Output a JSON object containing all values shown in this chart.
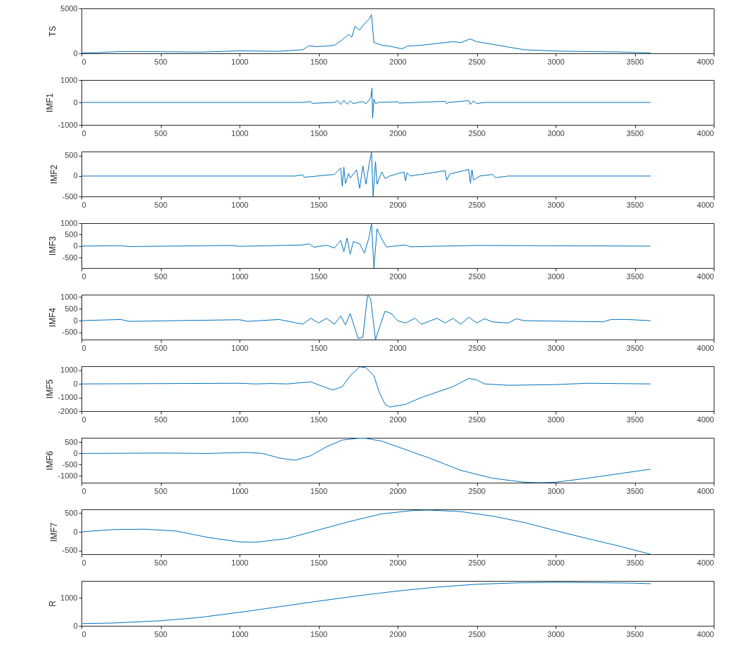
{
  "chart_data": [
    {
      "type": "line",
      "ylabel": "TS",
      "color": "#0072bd",
      "xlim": [
        0,
        4000
      ],
      "xticks": [
        0,
        500,
        1000,
        1500,
        2000,
        2500,
        3000,
        3500,
        4000
      ],
      "ylim": [
        0,
        5000
      ],
      "yticks": [
        0,
        5000
      ],
      "x": [
        0,
        100,
        250,
        500,
        750,
        1000,
        1100,
        1250,
        1400,
        1440,
        1480,
        1550,
        1600,
        1650,
        1690,
        1710,
        1730,
        1760,
        1790,
        1820,
        1835,
        1850,
        1900,
        1950,
        2000,
        2030,
        2060,
        2150,
        2250,
        2350,
        2400,
        2460,
        2500,
        2600,
        2700,
        2800,
        3000,
        3200,
        3400,
        3600
      ],
      "values": [
        50,
        80,
        200,
        180,
        130,
        280,
        250,
        220,
        400,
        850,
        750,
        800,
        900,
        1500,
        2100,
        1800,
        3000,
        2600,
        3300,
        3800,
        4300,
        1200,
        900,
        800,
        600,
        500,
        800,
        900,
        1100,
        1300,
        1200,
        1600,
        1300,
        1000,
        700,
        400,
        250,
        200,
        150,
        50
      ]
    },
    {
      "type": "line",
      "ylabel": "IMF1",
      "color": "#0072bd",
      "xlim": [
        0,
        4000
      ],
      "xticks": [
        0,
        500,
        1000,
        1500,
        2000,
        2500,
        3000,
        3500,
        4000
      ],
      "ylim": [
        -1000,
        1000
      ],
      "yticks": [
        -1000,
        0,
        1000
      ],
      "x": [
        0,
        1400,
        1450,
        1460,
        1600,
        1620,
        1640,
        1660,
        1680,
        1700,
        1720,
        1780,
        1800,
        1830,
        1838,
        1842,
        1850,
        1860,
        1880,
        2000,
        2010,
        2300,
        2310,
        2320,
        2450,
        2460,
        2480,
        2500,
        2550,
        3600
      ],
      "values": [
        0,
        0,
        40,
        -40,
        0,
        80,
        -90,
        100,
        -80,
        60,
        -50,
        40,
        -60,
        200,
        650,
        -700,
        150,
        -50,
        0,
        30,
        -30,
        50,
        -60,
        0,
        80,
        -90,
        70,
        -50,
        0,
        0
      ]
    },
    {
      "type": "line",
      "ylabel": "IMF2",
      "color": "#0072bd",
      "xlim": [
        0,
        4000
      ],
      "xticks": [
        0,
        500,
        1000,
        1500,
        2000,
        2500,
        3000,
        3500,
        4000
      ],
      "ylim": [
        -500,
        600
      ],
      "yticks": [
        -500,
        0,
        500
      ],
      "x": [
        0,
        1350,
        1400,
        1410,
        1600,
        1640,
        1650,
        1660,
        1670,
        1690,
        1700,
        1740,
        1760,
        1780,
        1800,
        1820,
        1835,
        1845,
        1860,
        1870,
        1900,
        1920,
        1950,
        2040,
        2050,
        2060,
        2080,
        2300,
        2310,
        2330,
        2450,
        2460,
        2470,
        2480,
        2520,
        2600,
        2620,
        2700,
        3600
      ],
      "values": [
        0,
        0,
        30,
        -30,
        40,
        200,
        -250,
        220,
        -180,
        60,
        -50,
        150,
        -300,
        250,
        -200,
        300,
        580,
        -500,
        350,
        -200,
        100,
        -60,
        0,
        100,
        -120,
        80,
        0,
        130,
        -100,
        50,
        160,
        -180,
        150,
        -100,
        0,
        40,
        -40,
        0,
        0
      ]
    },
    {
      "type": "line",
      "ylabel": "IMF3",
      "color": "#0072bd",
      "xlim": [
        0,
        4000
      ],
      "xticks": [
        0,
        500,
        1000,
        1500,
        2000,
        2500,
        3000,
        3500,
        4000
      ],
      "ylim": [
        -950,
        1000
      ],
      "yticks": [
        -500,
        0,
        500,
        1000
      ],
      "x": [
        0,
        250,
        300,
        950,
        1000,
        1400,
        1440,
        1470,
        1550,
        1600,
        1640,
        1660,
        1680,
        1700,
        1720,
        1760,
        1790,
        1820,
        1835,
        1850,
        1870,
        1900,
        1930,
        2000,
        2050,
        2080,
        2500,
        3600
      ],
      "values": [
        0,
        20,
        -20,
        30,
        -10,
        50,
        100,
        -50,
        40,
        -80,
        250,
        -250,
        350,
        -350,
        200,
        100,
        -300,
        400,
        1000,
        -950,
        750,
        300,
        -40,
        20,
        50,
        -30,
        30,
        0
      ]
    },
    {
      "type": "line",
      "ylabel": "IMF4",
      "color": "#0072bd",
      "xlim": [
        0,
        4000
      ],
      "xticks": [
        0,
        500,
        1000,
        1500,
        2000,
        2500,
        3000,
        3500,
        4000
      ],
      "ylim": [
        -800,
        1100
      ],
      "yticks": [
        -500,
        0,
        500,
        1000
      ],
      "x": [
        0,
        250,
        300,
        1000,
        1050,
        1250,
        1400,
        1450,
        1500,
        1550,
        1600,
        1640,
        1670,
        1700,
        1750,
        1780,
        1810,
        1830,
        1860,
        1890,
        1920,
        1960,
        2000,
        2050,
        2110,
        2150,
        2250,
        2300,
        2350,
        2400,
        2450,
        2500,
        2550,
        2600,
        2700,
        2750,
        2800,
        3300,
        3350,
        3450,
        3600
      ],
      "values": [
        0,
        50,
        -30,
        40,
        -30,
        50,
        -150,
        100,
        -100,
        100,
        -150,
        200,
        -180,
        300,
        -750,
        -700,
        1100,
        900,
        -800,
        -200,
        400,
        300,
        0,
        -100,
        100,
        -150,
        100,
        -100,
        100,
        -150,
        150,
        -100,
        80,
        -50,
        -100,
        80,
        0,
        -50,
        50,
        50,
        0
      ]
    },
    {
      "type": "line",
      "ylabel": "IMF5",
      "color": "#0072bd",
      "xlim": [
        0,
        4000
      ],
      "xticks": [
        0,
        500,
        1000,
        1500,
        2000,
        2500,
        3000,
        3500,
        4000
      ],
      "ylim": [
        -2000,
        1300
      ],
      "yticks": [
        -2000,
        -1000,
        0,
        1000
      ],
      "x": [
        0,
        1000,
        1100,
        1200,
        1300,
        1450,
        1530,
        1590,
        1650,
        1700,
        1760,
        1800,
        1850,
        1880,
        1920,
        1950,
        2050,
        2150,
        2250,
        2350,
        2450,
        2500,
        2550,
        2700,
        3000,
        3200,
        3600
      ],
      "values": [
        0,
        50,
        0,
        30,
        0,
        150,
        -200,
        -450,
        -200,
        600,
        1250,
        1200,
        600,
        -500,
        -1500,
        -1700,
        -1500,
        -1000,
        -600,
        -200,
        400,
        300,
        0,
        -100,
        -50,
        50,
        0
      ]
    },
    {
      "type": "line",
      "ylabel": "IMF6",
      "color": "#0072bd",
      "xlim": [
        0,
        4000
      ],
      "xticks": [
        0,
        500,
        1000,
        1500,
        2000,
        2500,
        3000,
        3500,
        4000
      ],
      "ylim": [
        -1300,
        700
      ],
      "yticks": [
        -1000,
        -500,
        0,
        500
      ],
      "x": [
        0,
        500,
        800,
        1050,
        1150,
        1250,
        1350,
        1450,
        1550,
        1650,
        1780,
        1900,
        2000,
        2200,
        2400,
        2600,
        2800,
        2900,
        3000,
        3200,
        3400,
        3600
      ],
      "values": [
        0,
        20,
        0,
        50,
        0,
        -200,
        -300,
        -100,
        300,
        600,
        700,
        550,
        300,
        -200,
        -750,
        -1100,
        -1280,
        -1300,
        -1280,
        -1100,
        -900,
        -700
      ]
    },
    {
      "type": "line",
      "ylabel": "IMF7",
      "color": "#0072bd",
      "xlim": [
        0,
        4000
      ],
      "xticks": [
        0,
        500,
        1000,
        1500,
        2000,
        2500,
        3000,
        3500,
        4000
      ],
      "ylim": [
        -600,
        600
      ],
      "yticks": [
        -500,
        0,
        500
      ],
      "x": [
        0,
        200,
        400,
        600,
        800,
        1000,
        1100,
        1300,
        1500,
        1700,
        1900,
        2100,
        2200,
        2400,
        2600,
        2800,
        3000,
        3200,
        3400,
        3600
      ],
      "values": [
        0,
        60,
        70,
        20,
        -150,
        -270,
        -280,
        -180,
        50,
        280,
        480,
        570,
        580,
        540,
        420,
        250,
        30,
        -180,
        -380,
        -600
      ]
    },
    {
      "type": "line",
      "ylabel": "R",
      "color": "#0072bd",
      "xlim": [
        0,
        4000
      ],
      "xticks": [
        0,
        500,
        1000,
        1500,
        2000,
        2500,
        3000,
        3500,
        4000
      ],
      "ylim": [
        0,
        1600
      ],
      "yticks": [
        0,
        1000
      ],
      "x": [
        0,
        200,
        500,
        750,
        1000,
        1250,
        1500,
        1750,
        2000,
        2250,
        2500,
        2750,
        3000,
        3250,
        3500,
        3600
      ],
      "values": [
        80,
        100,
        180,
        300,
        480,
        680,
        880,
        1070,
        1240,
        1380,
        1480,
        1530,
        1550,
        1540,
        1520,
        1500
      ]
    }
  ]
}
